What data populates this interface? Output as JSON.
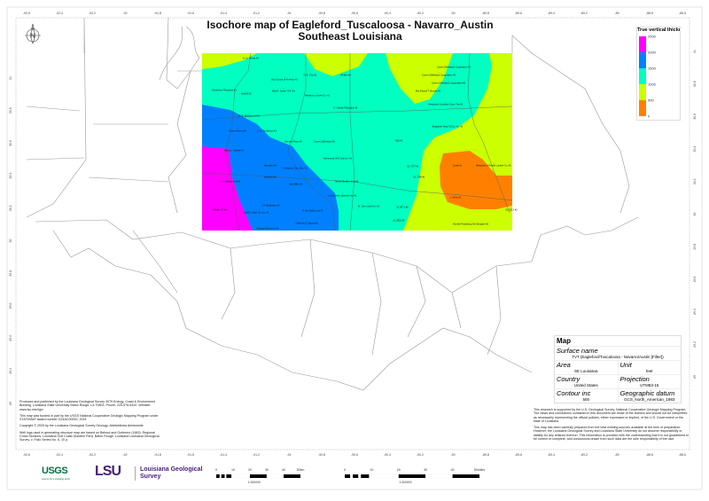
{
  "title": {
    "line1": "Isochore map of Eagleford_Tuscaloosa - Navarro_Austin",
    "line2": "Southeast Louisiana"
  },
  "x_axis_labels": [
    "-92.6",
    "-92.4",
    "-92.2",
    "-92",
    "-91.8",
    "-91.6",
    "-91.4",
    "-91.2",
    "-91",
    "-90.8",
    "-90.6",
    "-90.4",
    "-90.2",
    "-90",
    "-89.8",
    "-89.6",
    "-89.4",
    "-89.2",
    "-89",
    "-88.8",
    "-88.6"
  ],
  "y_axis_labels": [
    "31",
    "30.8",
    "30.6",
    "30.4",
    "30.2",
    "30",
    "29.8",
    "29.6",
    "29.4",
    "29.2",
    "29"
  ],
  "legend": {
    "title": "True vertical thickn",
    "ticks": [
      "2500",
      "2000",
      "1500",
      "1000",
      "500",
      "0"
    ],
    "colors": [
      "#ff00ff",
      "#0080ff",
      "#00ffc0",
      "#ccff00",
      "#ff8000"
    ]
  },
  "compass": {
    "icon": "north-arrow-icon",
    "label": "N"
  },
  "wells": [
    "H. H. Tolusa #1",
    "Boy Scouts of America #1",
    "Bob R. Jones \"A-9\" #1",
    "Roseblum Plantation #1",
    "McKell #1",
    "Newbury Lumber Co. #1",
    "H. E. Day #1",
    "Phillips #1",
    "K. Claude Plantation #1",
    "W. R. McVea et al #1",
    "Travis Hearrin #1",
    "C. A. Tomlinson #1",
    "Bernard Hays #1",
    "Crown Zellerbach #1",
    "Martin J. Kahao #1",
    "Hammond Oil & Gas Co. #1",
    "Hampton #1",
    "Livingston Carr. Sec. #1",
    "Hamilton #1",
    "Earl Miller #1",
    "J. A. Wilson et al #1",
    "James Mcalion et al #1",
    "Crosscreek Lakeside Inc. #1",
    "J. B. Magnifson #1",
    "E. W. Mattie et al #1",
    "Lula B. Baker Co. Inc. #1",
    "Wilbert \"A\" #1",
    "Clarence G. Boyce #1",
    "Dennis Farms Inc. #1",
    "St. John Land Co. #1",
    "Crown Zellerbach Corporation #1",
    "Crown Zellerbach Corporation #2",
    "Crown Zellerbach Corporation #3",
    "Mrs Pannie T. Brooks #1",
    "Meadows Container Corp. Fee #1",
    "Bogalusa Tung Oil Co. Inc. #1",
    "Tally #1",
    "Curtis #1",
    "Robinson & Pearle Lumber Co. #1",
    "SL 7177 #1",
    "SL 7180 #1",
    "J. Ahnst #1",
    "SL 2613 #2",
    "SL 5071 #2",
    "SL 5918 #2",
    "Humble Paulsburg Dis Mongers #1"
  ],
  "map_info": {
    "heading": "Map",
    "surface_name_label": "Surface name",
    "surface_name": "TVT (Eagleford/Tuscaloosa - Navarro/Austin [Filter])",
    "area_label": "Area",
    "area": "SE Louisiana",
    "unit_label": "Unit",
    "unit": "feet",
    "country_label": "Country",
    "country": "United States",
    "projection_label": "Projection",
    "projection": "UTM83-15",
    "contour_label": "Contour inc",
    "contour": "500",
    "datum_label": "Geographic datum",
    "datum": "GCS_North_American_1983"
  },
  "disclaimer": [
    "This research is supported by the U.S. Geological Survey, National Cooperative Geologic Mapping Program. The views and conclusions contained in this document are those of the authors and should not be interpreted as necessarily representing the official policies, either expressed or implied, of the U.S. Government or the state of Louisiana.",
    "This map has been carefully prepared from the best existing sources available at the time of preparation. However, the Louisiana Geological Survey and Louisiana State University do not assume responsibility or liability for any reliance thereon. This information is provided with the understanding that it is not guaranteed to be correct or complete, and conclusions drawn from such data are the sole responsibility of the user."
  ],
  "credits": [
    "Produced and published by the Louisiana Geological Survey 3079 Energy, Coast & Environment Building, Louisiana State University Baton Rouge, LA 70803. Phone: 225-578-5320. Website: www.lsu.edu/lgs/",
    "This map was funded in part by the USGS National Cooperative Geologic Mapping Program under STATEMAP award number G24AC00000, 2024",
    "Copyright © 2025 by the Louisiana Geological Survey Geology: Akintobiloba Akintomide",
    "Well logs used in generating structure map are based on Bebout and Gutierrez (1983): Regional Cross Sections, Louisiana Gulf Coast (Eastern Part). Baton Rouge, Louisiana Louisiana Geological Survey. v. Folio Series No. 6, 10 p."
  ],
  "logos": {
    "usgs": "USGS",
    "usgs_tagline": "science for a changing world",
    "lsu": "LSU",
    "lgs": "Louisiana Geological Survey"
  },
  "scale_km": {
    "ticks": [
      "0",
      "10",
      "20",
      "30",
      "40",
      "50km"
    ],
    "ratio": "1:300000"
  },
  "scale_mi": {
    "ticks": [
      "0",
      "10",
      "20",
      "30",
      "40",
      "50miles"
    ],
    "ratio": "1:300000"
  }
}
